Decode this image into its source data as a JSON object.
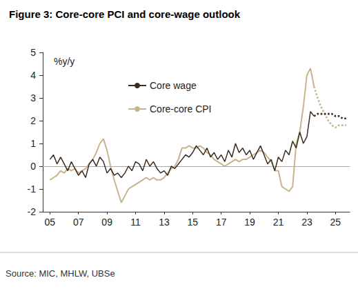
{
  "chart_data": {
    "type": "line",
    "title": "Figure 3: Core-core PCI and core-wage outlook",
    "ylabel": "%y/y",
    "source": "Source: MIC, MHLW, UBSe",
    "legend": "upper left",
    "grid": false,
    "xlim": [
      2004.5,
      2026
    ],
    "xticks": [
      {
        "value": 2005,
        "label": "05"
      },
      {
        "value": 2007,
        "label": "07"
      },
      {
        "value": 2009,
        "label": "09"
      },
      {
        "value": 2011,
        "label": "11"
      },
      {
        "value": 2013,
        "label": "13"
      },
      {
        "value": 2015,
        "label": "15"
      },
      {
        "value": 2017,
        "label": "17"
      },
      {
        "value": 2019,
        "label": "19"
      },
      {
        "value": 2021,
        "label": "21"
      },
      {
        "value": 2023,
        "label": "23"
      },
      {
        "value": 2025,
        "label": "25"
      }
    ],
    "ylim": [
      -2,
      5
    ],
    "yticks": [
      -2,
      -1,
      0,
      1,
      2,
      3,
      4,
      5
    ],
    "x": [
      2005,
      2005.25,
      2005.5,
      2005.75,
      2006,
      2006.25,
      2006.5,
      2006.75,
      2007,
      2007.25,
      2007.5,
      2007.75,
      2008,
      2008.25,
      2008.5,
      2008.75,
      2009,
      2009.25,
      2009.5,
      2009.75,
      2010,
      2010.25,
      2010.5,
      2010.75,
      2011,
      2011.25,
      2011.5,
      2011.75,
      2012,
      2012.25,
      2012.5,
      2012.75,
      2013,
      2013.25,
      2013.5,
      2013.75,
      2014,
      2014.25,
      2014.5,
      2014.75,
      2015,
      2015.25,
      2015.5,
      2015.75,
      2016,
      2016.25,
      2016.5,
      2016.75,
      2017,
      2017.25,
      2017.5,
      2017.75,
      2018,
      2018.25,
      2018.5,
      2018.75,
      2019,
      2019.25,
      2019.5,
      2019.75,
      2020,
      2020.25,
      2020.5,
      2020.75,
      2021,
      2021.25,
      2021.5,
      2021.75,
      2022,
      2022.25,
      2022.5,
      2022.75,
      2023,
      2023.25,
      2023.5,
      2023.75,
      2024,
      2024.25,
      2024.5,
      2024.75,
      2025,
      2025.25,
      2025.5,
      2025.75
    ],
    "series": [
      {
        "name": "Core wage",
        "color": "#3b2a1e",
        "line_style": "solid",
        "values": [
          0.3,
          0.5,
          0.1,
          0.4,
          0.1,
          -0.2,
          0.2,
          -0.1,
          -0.4,
          -0.2,
          -0.5,
          0.1,
          0.3,
          0.0,
          0.4,
          0.2,
          -0.3,
          -0.1,
          -0.4,
          -0.3,
          -0.5,
          -0.3,
          0.0,
          -0.2,
          0.2,
          0.1,
          -0.2,
          0.3,
          0.0,
          0.2,
          -0.1,
          -0.3,
          -0.2,
          -0.4,
          0.0,
          -0.1,
          0.1,
          0.3,
          0.5,
          0.4,
          0.6,
          0.9,
          0.7,
          0.5,
          0.8,
          0.4,
          0.6,
          0.3,
          0.5,
          0.2,
          0.7,
          0.4,
          1.0,
          0.6,
          0.8,
          0.5,
          0.7,
          0.3,
          0.6,
          0.9,
          0.5,
          0.1,
          0.3,
          -0.2,
          0.4,
          0.2,
          0.7,
          0.5,
          1.1,
          0.8,
          1.5,
          1.0,
          1.3,
          2.4,
          2.2,
          null,
          null,
          null,
          null,
          null,
          null,
          null,
          null,
          null
        ]
      },
      {
        "name": "Core-core CPI",
        "color": "#c8b38d",
        "line_style": "solid",
        "values": [
          -0.6,
          -0.5,
          -0.4,
          -0.2,
          -0.3,
          -0.1,
          -0.2,
          -0.1,
          -0.3,
          -0.2,
          -0.1,
          0.1,
          0.3,
          0.6,
          1.0,
          1.2,
          0.7,
          0.0,
          -0.6,
          -1.1,
          -1.6,
          -1.3,
          -1.0,
          -0.9,
          -0.8,
          -0.7,
          -0.6,
          -0.5,
          -0.6,
          -0.5,
          -0.6,
          -0.6,
          -0.5,
          -0.3,
          -0.1,
          0.0,
          0.3,
          0.8,
          0.8,
          0.9,
          0.8,
          0.8,
          0.9,
          0.8,
          0.6,
          0.5,
          0.3,
          0.2,
          0.1,
          0.0,
          0.1,
          0.2,
          0.3,
          0.2,
          0.3,
          0.3,
          0.4,
          0.5,
          0.6,
          0.7,
          0.6,
          0.4,
          0.2,
          -0.2,
          -0.2,
          -0.9,
          -1.0,
          -1.1,
          -0.9,
          1.0,
          1.5,
          2.6,
          4.0,
          4.3,
          3.5,
          null,
          null,
          null,
          null,
          null,
          null,
          null,
          null,
          null
        ]
      },
      {
        "name": "Core wage",
        "color": "#3b2a1e",
        "line_style": "dotted",
        "values": [
          null,
          null,
          null,
          null,
          null,
          null,
          null,
          null,
          null,
          null,
          null,
          null,
          null,
          null,
          null,
          null,
          null,
          null,
          null,
          null,
          null,
          null,
          null,
          null,
          null,
          null,
          null,
          null,
          null,
          null,
          null,
          null,
          null,
          null,
          null,
          null,
          null,
          null,
          null,
          null,
          null,
          null,
          null,
          null,
          null,
          null,
          null,
          null,
          null,
          null,
          null,
          null,
          null,
          null,
          null,
          null,
          null,
          null,
          null,
          null,
          null,
          null,
          null,
          null,
          null,
          null,
          null,
          null,
          null,
          null,
          null,
          null,
          null,
          null,
          2.2,
          2.3,
          2.3,
          2.3,
          2.3,
          2.3,
          2.2,
          2.2,
          2.1,
          2.1
        ]
      },
      {
        "name": "Core-core CPI",
        "color": "#c8b38d",
        "line_style": "dotted",
        "values": [
          null,
          null,
          null,
          null,
          null,
          null,
          null,
          null,
          null,
          null,
          null,
          null,
          null,
          null,
          null,
          null,
          null,
          null,
          null,
          null,
          null,
          null,
          null,
          null,
          null,
          null,
          null,
          null,
          null,
          null,
          null,
          null,
          null,
          null,
          null,
          null,
          null,
          null,
          null,
          null,
          null,
          null,
          null,
          null,
          null,
          null,
          null,
          null,
          null,
          null,
          null,
          null,
          null,
          null,
          null,
          null,
          null,
          null,
          null,
          null,
          null,
          null,
          null,
          null,
          null,
          null,
          null,
          null,
          null,
          null,
          null,
          null,
          null,
          null,
          3.5,
          3.0,
          2.6,
          2.3,
          2.0,
          1.8,
          1.7,
          1.8,
          1.8,
          1.8
        ]
      }
    ]
  }
}
